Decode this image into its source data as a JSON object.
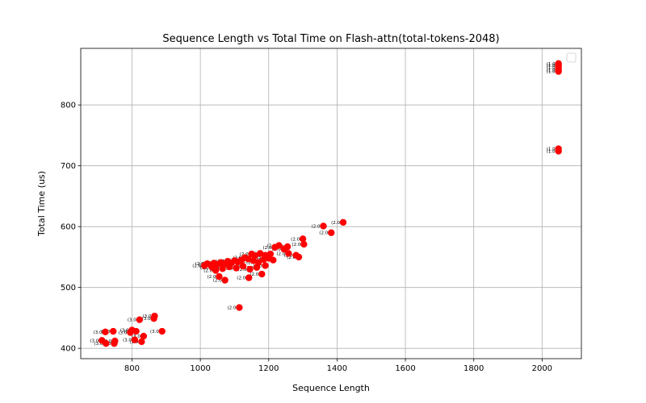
{
  "chart_data": {
    "type": "scatter",
    "title": "Sequence Length vs Total Time on Flash-attn(total-tokens-2048)",
    "xlabel": "Sequence Length",
    "ylabel": "Total Time (us)",
    "xlim": [
      650,
      2115
    ],
    "ylim": [
      383,
      893
    ],
    "xticks": [
      800,
      1000,
      1200,
      1400,
      1600,
      1800,
      2000
    ],
    "yticks": [
      400,
      500,
      600,
      700,
      800
    ],
    "grid": true,
    "legend": "top-right",
    "marker_color": "#ff0000",
    "points": [
      [
        2048,
        868,
        "(1.0"
      ],
      [
        2048,
        865,
        "(1.0"
      ],
      [
        2048,
        862,
        "(1.0"
      ],
      [
        2048,
        858,
        "(1.0"
      ],
      [
        2048,
        855,
        "(1.0"
      ],
      [
        2048,
        728,
        "(1.0"
      ],
      [
        2048,
        724,
        "(1.0"
      ],
      [
        1418,
        607,
        "(2.0"
      ],
      [
        1360,
        601,
        "(2.0"
      ],
      [
        1383,
        590,
        "(2.0"
      ],
      [
        1300,
        580,
        "(2.0"
      ],
      [
        1303,
        571,
        "(2.0"
      ],
      [
        1255,
        567,
        "(2.0"
      ],
      [
        1245,
        563,
        "(2.0"
      ],
      [
        1230,
        569,
        "(2.0"
      ],
      [
        1218,
        566,
        "(2.0"
      ],
      [
        1280,
        553,
        "(2.0"
      ],
      [
        1288,
        550,
        "(2.0"
      ],
      [
        1258,
        556,
        "(2.0"
      ],
      [
        1205,
        555,
        "(2.0"
      ],
      [
        1190,
        553,
        "(2.0"
      ],
      [
        1175,
        556,
        "(2.0"
      ],
      [
        1160,
        552,
        "(2.0"
      ],
      [
        1150,
        555,
        "(2.0"
      ],
      [
        1213,
        545,
        "(2.0"
      ],
      [
        1200,
        548,
        "(2.0"
      ],
      [
        1185,
        546,
        "(2.0"
      ],
      [
        1170,
        541,
        "(2.0"
      ],
      [
        1155,
        544,
        "(2.0"
      ],
      [
        1140,
        547,
        "(2.0"
      ],
      [
        1130,
        549,
        "(2.0"
      ],
      [
        1120,
        545,
        "(2.0"
      ],
      [
        1110,
        542,
        "(2.0"
      ],
      [
        1100,
        544,
        "(2.0"
      ],
      [
        1090,
        540,
        "(2.0"
      ],
      [
        1080,
        543,
        "(2.0"
      ],
      [
        1070,
        539,
        "(2.0"
      ],
      [
        1060,
        541,
        "(2.0"
      ],
      [
        1050,
        538,
        "(2.0"
      ],
      [
        1040,
        540,
        "(2.0"
      ],
      [
        1030,
        537,
        "(2.0"
      ],
      [
        1020,
        539,
        "(2.0"
      ],
      [
        1012,
        536,
        "(2.0"
      ],
      [
        1190,
        536,
        "(2.0"
      ],
      [
        1165,
        533,
        "(2.0"
      ],
      [
        1145,
        530,
        "(2.0"
      ],
      [
        1125,
        535,
        "(2.0"
      ],
      [
        1105,
        532,
        "(2.0"
      ],
      [
        1085,
        534,
        "(2.0"
      ],
      [
        1065,
        531,
        "(2.0"
      ],
      [
        1045,
        528,
        "(2.0"
      ],
      [
        1035,
        533,
        "(2.0"
      ],
      [
        1180,
        522,
        "(2.0"
      ],
      [
        1142,
        516,
        "(2.0"
      ],
      [
        1072,
        512,
        "(2.0"
      ],
      [
        1055,
        518,
        "(2.0"
      ],
      [
        1114,
        467,
        "(2.0"
      ],
      [
        866,
        453,
        "(3.0"
      ],
      [
        864,
        449,
        "(3.0"
      ],
      [
        822,
        447,
        "(3.0"
      ],
      [
        888,
        428,
        "(3.0"
      ],
      [
        800,
        430,
        "(3.0"
      ],
      [
        795,
        426,
        "(3.0"
      ],
      [
        812,
        428,
        "(3.0"
      ],
      [
        745,
        428,
        "(3.0"
      ],
      [
        722,
        427,
        "(3.0"
      ],
      [
        834,
        420,
        "(3.0"
      ],
      [
        808,
        414,
        "(3.0"
      ],
      [
        828,
        411,
        "(3.0"
      ],
      [
        750,
        412,
        "(3.0"
      ],
      [
        748,
        408,
        "(3.0"
      ],
      [
        712,
        413,
        "(3.0"
      ],
      [
        724,
        408,
        "(3.0"
      ]
    ]
  }
}
